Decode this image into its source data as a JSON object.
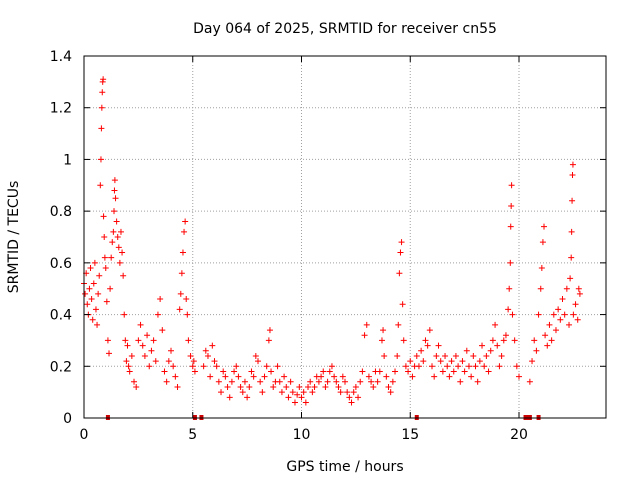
{
  "chart_data": {
    "type": "scatter",
    "title": "Day 064 of 2025, SRMTID for receiver cn55",
    "xlabel": "GPS time / hours",
    "ylabel": "SRMTID / TECUs",
    "xlim": [
      0,
      24
    ],
    "ylim": [
      0,
      1.4
    ],
    "x_ticks": [
      0,
      5,
      10,
      15,
      20
    ],
    "x_tick_labels": [
      "0",
      "5",
      "10",
      "15",
      "20"
    ],
    "y_ticks": [
      0,
      0.2,
      0.4,
      0.6,
      0.8,
      1.0,
      1.2,
      1.4
    ],
    "y_tick_labels": [
      "0",
      "0.2",
      "0.4",
      "0.6",
      "0.8",
      "1",
      "1.2",
      "1.4"
    ],
    "grid": true,
    "marker": "plus",
    "colors": {
      "points": "#ff0000",
      "gaps": "#cc0000",
      "grid": "#a0a0a0",
      "axis": "#000000"
    },
    "series": [
      {
        "name": "SRMTID",
        "points": [
          [
            0.0,
            0.52
          ],
          [
            0.05,
            0.48
          ],
          [
            0.1,
            0.56
          ],
          [
            0.15,
            0.44
          ],
          [
            0.2,
            0.4
          ],
          [
            0.25,
            0.5
          ],
          [
            0.3,
            0.58
          ],
          [
            0.35,
            0.46
          ],
          [
            0.4,
            0.38
          ],
          [
            0.45,
            0.52
          ],
          [
            0.5,
            0.6
          ],
          [
            0.55,
            0.42
          ],
          [
            0.6,
            0.36
          ],
          [
            0.65,
            0.48
          ],
          [
            0.7,
            0.55
          ],
          [
            0.75,
            0.9
          ],
          [
            0.78,
            1.0
          ],
          [
            0.8,
            1.12
          ],
          [
            0.82,
            1.2
          ],
          [
            0.84,
            1.26
          ],
          [
            0.86,
            1.3
          ],
          [
            0.88,
            1.31
          ],
          [
            0.9,
            0.78
          ],
          [
            0.93,
            0.7
          ],
          [
            0.96,
            0.62
          ],
          [
            1.0,
            0.58
          ],
          [
            1.05,
            0.45
          ],
          [
            1.1,
            0.3
          ],
          [
            1.15,
            0.25
          ],
          [
            1.2,
            0.5
          ],
          [
            1.25,
            0.62
          ],
          [
            1.3,
            0.68
          ],
          [
            1.35,
            0.72
          ],
          [
            1.38,
            0.8
          ],
          [
            1.4,
            0.88
          ],
          [
            1.42,
            0.92
          ],
          [
            1.45,
            0.85
          ],
          [
            1.5,
            0.76
          ],
          [
            1.55,
            0.7
          ],
          [
            1.6,
            0.66
          ],
          [
            1.65,
            0.6
          ],
          [
            1.7,
            0.72
          ],
          [
            1.75,
            0.64
          ],
          [
            1.8,
            0.55
          ],
          [
            1.85,
            0.4
          ],
          [
            1.9,
            0.3
          ],
          [
            1.95,
            0.22
          ],
          [
            2.0,
            0.28
          ],
          [
            2.05,
            0.2
          ],
          [
            2.1,
            0.18
          ],
          [
            2.2,
            0.24
          ],
          [
            2.3,
            0.14
          ],
          [
            2.4,
            0.12
          ],
          [
            2.5,
            0.3
          ],
          [
            2.6,
            0.36
          ],
          [
            2.7,
            0.28
          ],
          [
            2.8,
            0.24
          ],
          [
            2.9,
            0.32
          ],
          [
            3.0,
            0.2
          ],
          [
            3.1,
            0.26
          ],
          [
            3.2,
            0.3
          ],
          [
            3.3,
            0.22
          ],
          [
            3.4,
            0.4
          ],
          [
            3.5,
            0.46
          ],
          [
            3.6,
            0.34
          ],
          [
            3.7,
            0.18
          ],
          [
            3.8,
            0.14
          ],
          [
            3.9,
            0.22
          ],
          [
            4.0,
            0.26
          ],
          [
            4.1,
            0.2
          ],
          [
            4.2,
            0.16
          ],
          [
            4.3,
            0.12
          ],
          [
            4.4,
            0.42
          ],
          [
            4.45,
            0.48
          ],
          [
            4.5,
            0.56
          ],
          [
            4.55,
            0.64
          ],
          [
            4.6,
            0.72
          ],
          [
            4.65,
            0.76
          ],
          [
            4.7,
            0.46
          ],
          [
            4.75,
            0.4
          ],
          [
            4.8,
            0.3
          ],
          [
            4.9,
            0.24
          ],
          [
            5.0,
            0.2
          ],
          [
            5.05,
            0.22
          ],
          [
            5.1,
            0.18
          ],
          [
            5.5,
            0.2
          ],
          [
            5.6,
            0.26
          ],
          [
            5.7,
            0.24
          ],
          [
            5.8,
            0.16
          ],
          [
            5.9,
            0.28
          ],
          [
            6.0,
            0.22
          ],
          [
            6.1,
            0.2
          ],
          [
            6.2,
            0.14
          ],
          [
            6.3,
            0.1
          ],
          [
            6.4,
            0.18
          ],
          [
            6.5,
            0.16
          ],
          [
            6.6,
            0.12
          ],
          [
            6.7,
            0.08
          ],
          [
            6.8,
            0.14
          ],
          [
            6.9,
            0.18
          ],
          [
            7.0,
            0.2
          ],
          [
            7.1,
            0.16
          ],
          [
            7.2,
            0.12
          ],
          [
            7.3,
            0.1
          ],
          [
            7.4,
            0.14
          ],
          [
            7.5,
            0.08
          ],
          [
            7.6,
            0.12
          ],
          [
            7.7,
            0.18
          ],
          [
            7.8,
            0.16
          ],
          [
            7.9,
            0.24
          ],
          [
            8.0,
            0.22
          ],
          [
            8.1,
            0.14
          ],
          [
            8.2,
            0.1
          ],
          [
            8.3,
            0.16
          ],
          [
            8.4,
            0.2
          ],
          [
            8.5,
            0.3
          ],
          [
            8.55,
            0.34
          ],
          [
            8.6,
            0.18
          ],
          [
            8.7,
            0.12
          ],
          [
            8.8,
            0.14
          ],
          [
            8.9,
            0.2
          ],
          [
            9.0,
            0.14
          ],
          [
            9.1,
            0.1
          ],
          [
            9.2,
            0.16
          ],
          [
            9.3,
            0.12
          ],
          [
            9.4,
            0.08
          ],
          [
            9.5,
            0.14
          ],
          [
            9.6,
            0.1
          ],
          [
            9.7,
            0.06
          ],
          [
            9.8,
            0.09
          ],
          [
            9.9,
            0.12
          ],
          [
            10.0,
            0.08
          ],
          [
            10.1,
            0.1
          ],
          [
            10.2,
            0.06
          ],
          [
            10.3,
            0.12
          ],
          [
            10.4,
            0.14
          ],
          [
            10.5,
            0.1
          ],
          [
            10.6,
            0.12
          ],
          [
            10.7,
            0.16
          ],
          [
            10.8,
            0.14
          ],
          [
            10.9,
            0.16
          ],
          [
            11.0,
            0.18
          ],
          [
            11.1,
            0.12
          ],
          [
            11.2,
            0.14
          ],
          [
            11.3,
            0.18
          ],
          [
            11.4,
            0.2
          ],
          [
            11.5,
            0.16
          ],
          [
            11.6,
            0.14
          ],
          [
            11.7,
            0.12
          ],
          [
            11.8,
            0.1
          ],
          [
            11.9,
            0.16
          ],
          [
            12.0,
            0.14
          ],
          [
            12.1,
            0.1
          ],
          [
            12.2,
            0.08
          ],
          [
            12.3,
            0.06
          ],
          [
            12.4,
            0.1
          ],
          [
            12.5,
            0.12
          ],
          [
            12.6,
            0.08
          ],
          [
            12.7,
            0.14
          ],
          [
            12.8,
            0.18
          ],
          [
            12.9,
            0.32
          ],
          [
            13.0,
            0.36
          ],
          [
            13.1,
            0.16
          ],
          [
            13.2,
            0.14
          ],
          [
            13.3,
            0.12
          ],
          [
            13.4,
            0.18
          ],
          [
            13.5,
            0.14
          ],
          [
            13.6,
            0.18
          ],
          [
            13.7,
            0.3
          ],
          [
            13.75,
            0.34
          ],
          [
            13.8,
            0.24
          ],
          [
            13.9,
            0.16
          ],
          [
            14.0,
            0.12
          ],
          [
            14.1,
            0.1
          ],
          [
            14.2,
            0.14
          ],
          [
            14.3,
            0.18
          ],
          [
            14.4,
            0.24
          ],
          [
            14.45,
            0.36
          ],
          [
            14.5,
            0.56
          ],
          [
            14.55,
            0.64
          ],
          [
            14.6,
            0.68
          ],
          [
            14.65,
            0.44
          ],
          [
            14.7,
            0.3
          ],
          [
            14.8,
            0.2
          ],
          [
            14.9,
            0.18
          ],
          [
            15.0,
            0.22
          ],
          [
            15.1,
            0.16
          ],
          [
            15.2,
            0.2
          ],
          [
            15.3,
            0.24
          ],
          [
            15.4,
            0.2
          ],
          [
            15.5,
            0.26
          ],
          [
            15.6,
            0.22
          ],
          [
            15.7,
            0.3
          ],
          [
            15.8,
            0.28
          ],
          [
            15.9,
            0.34
          ],
          [
            16.0,
            0.2
          ],
          [
            16.1,
            0.16
          ],
          [
            16.2,
            0.24
          ],
          [
            16.3,
            0.28
          ],
          [
            16.4,
            0.22
          ],
          [
            16.5,
            0.18
          ],
          [
            16.6,
            0.24
          ],
          [
            16.7,
            0.2
          ],
          [
            16.8,
            0.16
          ],
          [
            16.9,
            0.22
          ],
          [
            17.0,
            0.18
          ],
          [
            17.1,
            0.24
          ],
          [
            17.2,
            0.2
          ],
          [
            17.3,
            0.14
          ],
          [
            17.4,
            0.22
          ],
          [
            17.5,
            0.18
          ],
          [
            17.6,
            0.26
          ],
          [
            17.7,
            0.2
          ],
          [
            17.8,
            0.16
          ],
          [
            17.9,
            0.24
          ],
          [
            18.0,
            0.2
          ],
          [
            18.1,
            0.14
          ],
          [
            18.2,
            0.22
          ],
          [
            18.3,
            0.28
          ],
          [
            18.4,
            0.2
          ],
          [
            18.5,
            0.24
          ],
          [
            18.6,
            0.18
          ],
          [
            18.7,
            0.26
          ],
          [
            18.8,
            0.3
          ],
          [
            18.9,
            0.36
          ],
          [
            19.0,
            0.28
          ],
          [
            19.1,
            0.2
          ],
          [
            19.2,
            0.24
          ],
          [
            19.3,
            0.3
          ],
          [
            19.4,
            0.32
          ],
          [
            19.5,
            0.42
          ],
          [
            19.55,
            0.5
          ],
          [
            19.6,
            0.6
          ],
          [
            19.62,
            0.74
          ],
          [
            19.64,
            0.82
          ],
          [
            19.66,
            0.9
          ],
          [
            19.7,
            0.4
          ],
          [
            19.8,
            0.3
          ],
          [
            19.9,
            0.2
          ],
          [
            20.0,
            0.16
          ],
          [
            20.5,
            0.14
          ],
          [
            20.6,
            0.22
          ],
          [
            20.7,
            0.3
          ],
          [
            20.8,
            0.26
          ],
          [
            20.9,
            0.4
          ],
          [
            21.0,
            0.5
          ],
          [
            21.05,
            0.58
          ],
          [
            21.1,
            0.68
          ],
          [
            21.15,
            0.74
          ],
          [
            21.2,
            0.32
          ],
          [
            21.3,
            0.28
          ],
          [
            21.4,
            0.36
          ],
          [
            21.5,
            0.3
          ],
          [
            21.6,
            0.4
          ],
          [
            21.7,
            0.34
          ],
          [
            21.8,
            0.42
          ],
          [
            21.9,
            0.38
          ],
          [
            22.0,
            0.46
          ],
          [
            22.1,
            0.4
          ],
          [
            22.2,
            0.5
          ],
          [
            22.3,
            0.36
          ],
          [
            22.35,
            0.54
          ],
          [
            22.4,
            0.62
          ],
          [
            22.42,
            0.72
          ],
          [
            22.44,
            0.84
          ],
          [
            22.46,
            0.94
          ],
          [
            22.48,
            0.98
          ],
          [
            22.5,
            0.4
          ],
          [
            22.6,
            0.44
          ],
          [
            22.7,
            0.38
          ],
          [
            22.75,
            0.5
          ],
          [
            22.8,
            0.48
          ]
        ]
      }
    ],
    "gap_markers_x": [
      1.1,
      5.1,
      5.4,
      15.3,
      20.3,
      20.4,
      20.5,
      20.9
    ]
  }
}
